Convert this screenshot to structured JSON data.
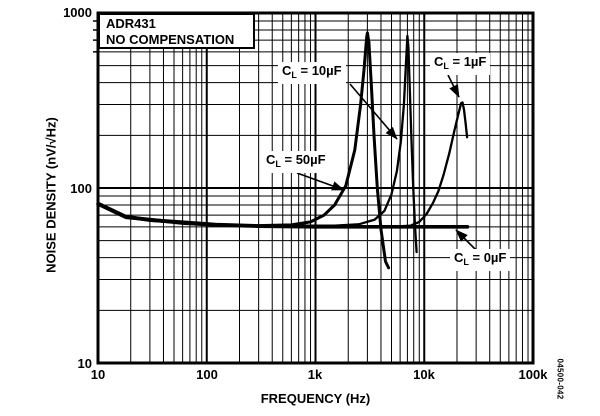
{
  "figure_code": "04500-042",
  "colors": {
    "ink": "#000000",
    "background": "#ffffff"
  },
  "title_box": {
    "line1": "ADR431",
    "line2": "NO COMPENSATION"
  },
  "axes": {
    "x_label": "FREQUENCY (Hz)",
    "y_label": "NOISE DENSITY (nV/√Hz)",
    "x_ticks": [
      "10",
      "100",
      "1k",
      "10k",
      "100k"
    ],
    "y_ticks": [
      "1000",
      "100",
      "10"
    ]
  },
  "curve_labels": [
    {
      "pre": "C",
      "sub": "L",
      "post": " = 10µF"
    },
    {
      "pre": "C",
      "sub": "L",
      "post": " = 1µF"
    },
    {
      "pre": "C",
      "sub": "L",
      "post": " = 50µF"
    },
    {
      "pre": "C",
      "sub": "L",
      "post": " = 0µF"
    }
  ],
  "chart_data": {
    "type": "line",
    "title": "ADR431 NO COMPENSATION",
    "xlabel": "FREQUENCY (Hz)",
    "ylabel": "NOISE DENSITY (nV/√Hz)",
    "x_scale": "log",
    "y_scale": "log",
    "xlim": [
      10,
      100000
    ],
    "ylim": [
      10,
      1000
    ],
    "grid": "full log grid, major and minor lines, black on white",
    "legend_position": "inline labels with arrows",
    "series": [
      {
        "name": "CL = 0µF",
        "width": 3.6,
        "points": [
          [
            10,
            81
          ],
          [
            18,
            68
          ],
          [
            30,
            66
          ],
          [
            60,
            63
          ],
          [
            120,
            61.5
          ],
          [
            300,
            60.5
          ],
          [
            1000,
            60
          ],
          [
            3000,
            60
          ],
          [
            8000,
            60
          ],
          [
            15000,
            60
          ],
          [
            25000,
            60
          ]
        ]
      },
      {
        "name": "CL = 50µF",
        "width": 3.0,
        "points": [
          [
            10,
            82
          ],
          [
            18,
            69
          ],
          [
            30,
            66
          ],
          [
            60,
            64
          ],
          [
            120,
            62
          ],
          [
            300,
            61
          ],
          [
            600,
            61.5
          ],
          [
            900,
            64
          ],
          [
            1200,
            70
          ],
          [
            1500,
            80
          ],
          [
            1900,
            103
          ],
          [
            2300,
            165
          ],
          [
            2600,
            300
          ],
          [
            2800,
            480
          ],
          [
            2950,
            720
          ],
          [
            3000,
            770
          ],
          [
            3100,
            680
          ],
          [
            3250,
            400
          ],
          [
            3450,
            200
          ],
          [
            3700,
            100
          ],
          [
            4000,
            58
          ],
          [
            4400,
            38
          ],
          [
            4700,
            35
          ]
        ]
      },
      {
        "name": "CL = 10µF",
        "width": 2.3,
        "points": [
          [
            10,
            81
          ],
          [
            18,
            68
          ],
          [
            30,
            65
          ],
          [
            60,
            63
          ],
          [
            120,
            61.5
          ],
          [
            400,
            61
          ],
          [
            1500,
            61
          ],
          [
            2500,
            62
          ],
          [
            3500,
            66
          ],
          [
            4300,
            74
          ],
          [
            5000,
            92
          ],
          [
            5600,
            125
          ],
          [
            6100,
            185
          ],
          [
            6500,
            300
          ],
          [
            6800,
            520
          ],
          [
            7000,
            740
          ],
          [
            7150,
            640
          ],
          [
            7350,
            380
          ],
          [
            7600,
            200
          ],
          [
            7900,
            105
          ],
          [
            8200,
            62
          ],
          [
            8500,
            43
          ]
        ]
      },
      {
        "name": "CL = 1µF",
        "width": 2.3,
        "points": [
          [
            10,
            81
          ],
          [
            18,
            68
          ],
          [
            30,
            65
          ],
          [
            60,
            63
          ],
          [
            120,
            61.5
          ],
          [
            400,
            60.5
          ],
          [
            2000,
            60
          ],
          [
            5000,
            60
          ],
          [
            7500,
            61
          ],
          [
            9000,
            64
          ],
          [
            10500,
            71
          ],
          [
            12000,
            82
          ],
          [
            13500,
            96
          ],
          [
            15000,
            118
          ],
          [
            17000,
            158
          ],
          [
            19000,
            215
          ],
          [
            20500,
            262
          ],
          [
            21800,
            305
          ],
          [
            22500,
            308
          ],
          [
            23200,
            280
          ],
          [
            24000,
            235
          ],
          [
            24800,
            195
          ]
        ]
      }
    ],
    "annotations": [
      {
        "text": "CL = 10µF",
        "points_to": "rising edge of 10µF resonance peak near 6 kHz"
      },
      {
        "text": "CL = 1µF",
        "points_to": "1µF resonance peak near 22 kHz, ~310 nV/√Hz"
      },
      {
        "text": "CL = 50µF",
        "points_to": "rising edge of 50µF resonance peak near 1.9 kHz"
      },
      {
        "text": "CL = 0µF",
        "points_to": "flat 0µF trace at ~60 nV/√Hz ending near 25 kHz"
      }
    ]
  }
}
